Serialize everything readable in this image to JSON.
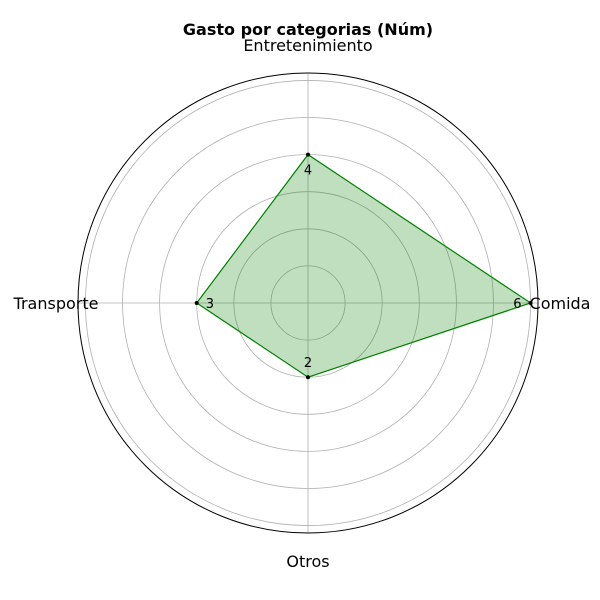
{
  "chart_data": {
    "type": "radar",
    "title": "Gasto por categorias (Núm)",
    "categories": [
      "Comida",
      "Entretenimiento",
      "Transporte",
      "Otros"
    ],
    "values": [
      6,
      4,
      3,
      2
    ],
    "rlim": [
      0,
      6.2
    ],
    "rticks": [
      1,
      2,
      3,
      4,
      5,
      6
    ],
    "grid": true,
    "show_rtick_labels": false,
    "data_labels": [
      "6",
      "4",
      "3",
      "2"
    ],
    "colors": {
      "line": "#008000",
      "fill": "#008000",
      "fill_opacity": 0.25,
      "grid": "#b0b0b0",
      "outline": "#000000"
    }
  }
}
